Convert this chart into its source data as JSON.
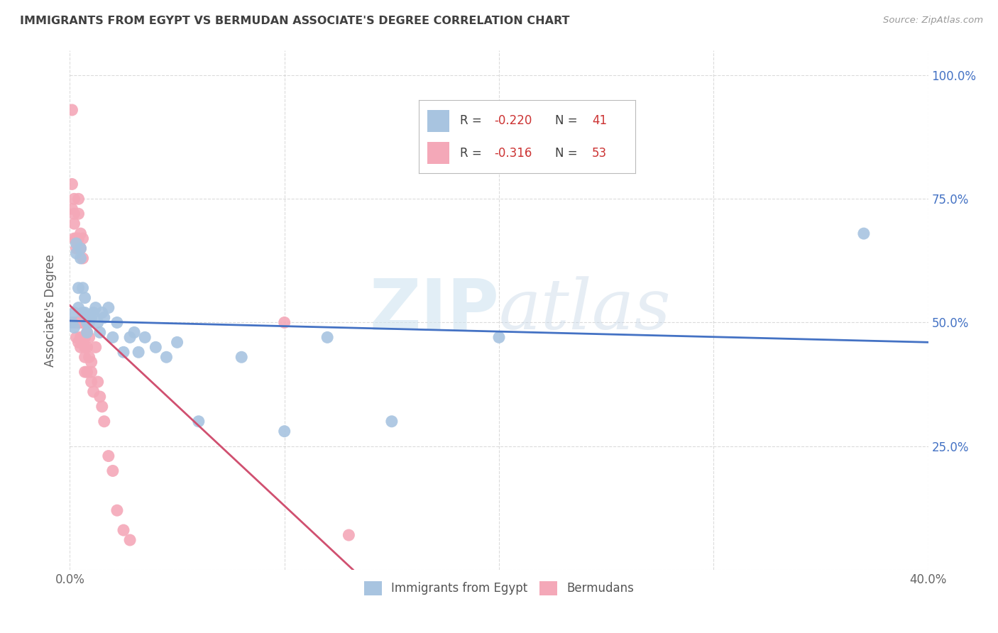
{
  "title": "IMMIGRANTS FROM EGYPT VS BERMUDAN ASSOCIATE'S DEGREE CORRELATION CHART",
  "source": "Source: ZipAtlas.com",
  "ylabel": "Associate's Degree",
  "xlim": [
    0.0,
    0.4
  ],
  "ylim": [
    0.0,
    1.05
  ],
  "xticks": [
    0.0,
    0.1,
    0.2,
    0.3,
    0.4
  ],
  "xtick_labels": [
    "0.0%",
    "",
    "",
    "",
    "40.0%"
  ],
  "yticks": [
    0.0,
    0.25,
    0.5,
    0.75,
    1.0
  ],
  "ytick_labels_left": [
    "",
    "",
    "",
    "",
    ""
  ],
  "ytick_labels_right": [
    "",
    "25.0%",
    "50.0%",
    "75.0%",
    "100.0%"
  ],
  "legend_R1": "-0.220",
  "legend_N1": "41",
  "legend_R2": "-0.316",
  "legend_N2": "53",
  "color_blue": "#a8c4e0",
  "color_pink": "#f4a8b8",
  "line_blue": "#4472c4",
  "line_pink": "#d05070",
  "blue_x": [
    0.001,
    0.002,
    0.002,
    0.003,
    0.003,
    0.004,
    0.004,
    0.005,
    0.005,
    0.006,
    0.006,
    0.007,
    0.007,
    0.008,
    0.008,
    0.009,
    0.01,
    0.011,
    0.012,
    0.013,
    0.014,
    0.015,
    0.016,
    0.018,
    0.02,
    0.022,
    0.025,
    0.028,
    0.03,
    0.032,
    0.035,
    0.04,
    0.045,
    0.05,
    0.06,
    0.08,
    0.1,
    0.12,
    0.15,
    0.2,
    0.37
  ],
  "blue_y": [
    0.5,
    0.52,
    0.49,
    0.66,
    0.64,
    0.57,
    0.53,
    0.65,
    0.63,
    0.57,
    0.52,
    0.55,
    0.52,
    0.5,
    0.48,
    0.5,
    0.51,
    0.52,
    0.53,
    0.5,
    0.48,
    0.52,
    0.51,
    0.53,
    0.47,
    0.5,
    0.44,
    0.47,
    0.48,
    0.44,
    0.47,
    0.45,
    0.43,
    0.46,
    0.3,
    0.43,
    0.28,
    0.47,
    0.3,
    0.47,
    0.68
  ],
  "pink_x": [
    0.001,
    0.001,
    0.001,
    0.001,
    0.002,
    0.002,
    0.002,
    0.002,
    0.002,
    0.003,
    0.003,
    0.003,
    0.003,
    0.004,
    0.004,
    0.004,
    0.004,
    0.004,
    0.005,
    0.005,
    0.005,
    0.005,
    0.005,
    0.006,
    0.006,
    0.006,
    0.006,
    0.007,
    0.007,
    0.007,
    0.007,
    0.007,
    0.008,
    0.008,
    0.008,
    0.009,
    0.009,
    0.01,
    0.01,
    0.01,
    0.011,
    0.012,
    0.013,
    0.014,
    0.015,
    0.016,
    0.018,
    0.02,
    0.022,
    0.025,
    0.028,
    0.1,
    0.13
  ],
  "pink_y": [
    0.93,
    0.78,
    0.73,
    0.5,
    0.75,
    0.72,
    0.7,
    0.67,
    0.5,
    0.67,
    0.65,
    0.5,
    0.47,
    0.75,
    0.72,
    0.67,
    0.5,
    0.46,
    0.68,
    0.65,
    0.5,
    0.47,
    0.45,
    0.67,
    0.63,
    0.5,
    0.46,
    0.5,
    0.47,
    0.45,
    0.43,
    0.4,
    0.48,
    0.45,
    0.4,
    0.47,
    0.43,
    0.42,
    0.4,
    0.38,
    0.36,
    0.45,
    0.38,
    0.35,
    0.33,
    0.3,
    0.23,
    0.2,
    0.12,
    0.08,
    0.06,
    0.5,
    0.07
  ],
  "watermark_zip": "ZIP",
  "watermark_atlas": "atlas",
  "background_color": "#ffffff",
  "grid_color": "#cccccc",
  "title_color": "#404040",
  "axis_label_color": "#606060",
  "tick_color_right": "#4472c4",
  "blue_label": "Immigrants from Egypt",
  "pink_label": "Bermudans"
}
